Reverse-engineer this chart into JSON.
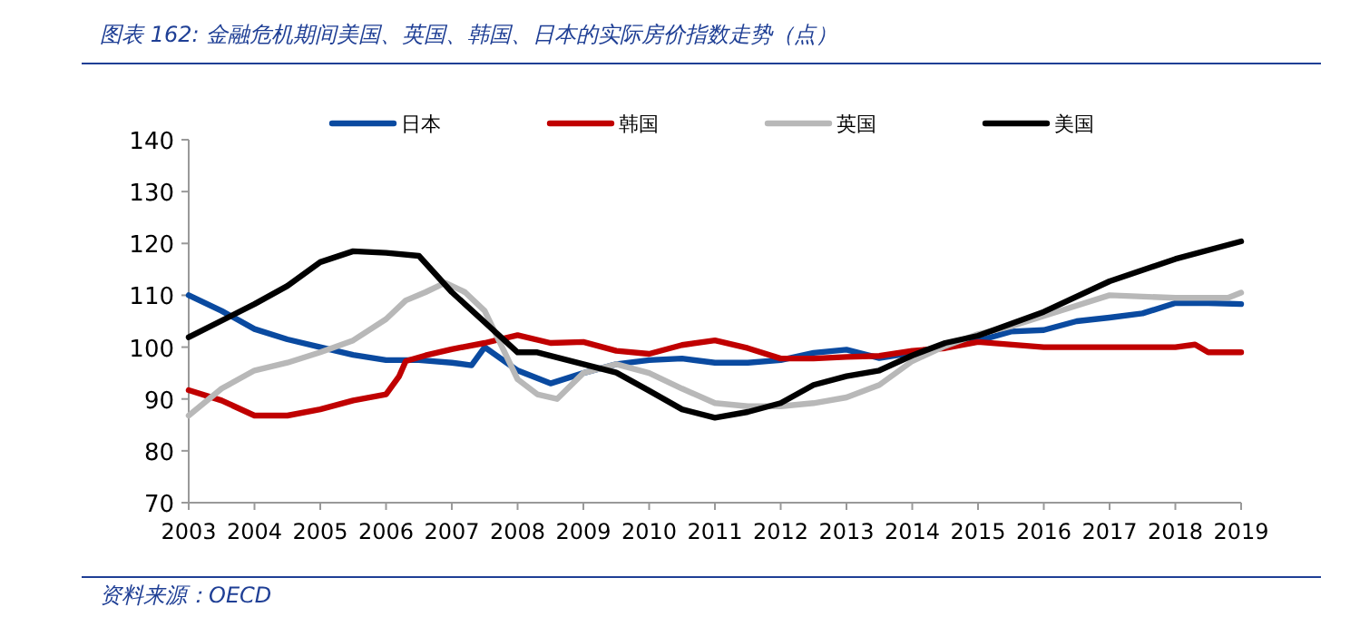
{
  "chart_data": {
    "type": "line",
    "title": "图表 162: 金融危机期间美国、英国、韩国、日本的实际房价指数走势（点）",
    "annotations": [
      "资料来源：OECD"
    ],
    "xlim": [
      2003,
      2019
    ],
    "xticks": [
      2003,
      2004,
      2005,
      2006,
      2007,
      2008,
      2009,
      2010,
      2011,
      2012,
      2013,
      2014,
      2015,
      2016,
      2017,
      2018,
      2019
    ],
    "ylim": [
      70,
      140
    ],
    "yticks": [
      70,
      80,
      90,
      100,
      110,
      120,
      130,
      140
    ],
    "grid": false,
    "legend": "top",
    "marker": "none",
    "line_style": "solid",
    "series": [
      {
        "name": "日本",
        "color": "#0a4aa0",
        "x": [
          2003,
          2003.5,
          2004,
          2004.5,
          2005,
          2005.5,
          2006,
          2006.5,
          2007,
          2007.3,
          2007.5,
          2008,
          2008.5,
          2009,
          2009.5,
          2010,
          2010.5,
          2011,
          2011.5,
          2012,
          2012.5,
          2013,
          2013.5,
          2014,
          2014.5,
          2015,
          2015.5,
          2016,
          2016.5,
          2017,
          2017.5,
          2018,
          2018.5,
          2019
        ],
        "values": [
          110,
          107,
          103.5,
          101.5,
          100,
          98.5,
          97.5,
          97.5,
          97,
          96.5,
          100,
          95.5,
          93,
          95,
          96.7,
          97.5,
          97.8,
          97,
          97,
          97.5,
          98.9,
          99.5,
          97.9,
          98.9,
          100,
          101.2,
          103,
          103.3,
          105,
          105.7,
          106.5,
          108.5,
          108.5,
          108.3
        ]
      },
      {
        "name": "韩国",
        "color": "#c00000",
        "x": [
          2003,
          2003.5,
          2004,
          2004.5,
          2005,
          2005.5,
          2006,
          2006.2,
          2006.3,
          2006.6,
          2007,
          2007.5,
          2008,
          2008.5,
          2009,
          2009.5,
          2010,
          2010.5,
          2011,
          2011.5,
          2012,
          2012.5,
          2013,
          2013.5,
          2014,
          2014.5,
          2015,
          2016,
          2017,
          2018,
          2018.3,
          2018.5,
          2019
        ],
        "values": [
          91.7,
          89.7,
          86.8,
          86.8,
          88,
          89.7,
          90.9,
          94.4,
          97.3,
          98.4,
          99.6,
          100.8,
          102.3,
          100.8,
          101,
          99.3,
          98.7,
          100.4,
          101.3,
          99.8,
          97.8,
          97.8,
          98.1,
          98.3,
          99.3,
          99.8,
          101,
          100,
          100,
          100,
          100.5,
          99,
          99
        ]
      },
      {
        "name": "英国",
        "color": "#b8b8b8",
        "x": [
          2003,
          2003.5,
          2004,
          2004.5,
          2005,
          2005.5,
          2006,
          2006.3,
          2006.6,
          2006.9,
          2007.2,
          2007.5,
          2008,
          2008.3,
          2008.6,
          2009,
          2009.5,
          2010,
          2010.5,
          2011,
          2011.5,
          2012,
          2012.5,
          2013,
          2013.5,
          2014,
          2014.5,
          2015,
          2015.5,
          2016,
          2017,
          2018,
          2018.8,
          2019
        ],
        "values": [
          86.8,
          92,
          95.5,
          97,
          99,
          101.3,
          105.4,
          109,
          110.6,
          112.4,
          110.6,
          107,
          93.8,
          90.9,
          90,
          95,
          96.7,
          95,
          92,
          89.2,
          88.6,
          88.6,
          89.2,
          90.3,
          92.7,
          97.3,
          100.2,
          102.5,
          104,
          106,
          110,
          109.5,
          109.5,
          110.5
        ]
      },
      {
        "name": "美国",
        "color": "#000000",
        "x": [
          2003,
          2004,
          2004.5,
          2005,
          2005.5,
          2006,
          2006.5,
          2007,
          2007.5,
          2008,
          2008.3,
          2009,
          2009.5,
          2010,
          2010.5,
          2011,
          2011.5,
          2012,
          2012.5,
          2013,
          2013.5,
          2014,
          2014.5,
          2015,
          2016,
          2017,
          2018,
          2019
        ],
        "values": [
          101.9,
          108.3,
          111.8,
          116.4,
          118.5,
          118.2,
          117.6,
          110.6,
          104.8,
          99,
          99,
          96.7,
          95.1,
          91.6,
          88,
          86.4,
          87.5,
          89.2,
          92.7,
          94.4,
          95.5,
          98.4,
          100.8,
          102.2,
          106.8,
          112.7,
          117,
          120.4
        ]
      }
    ]
  }
}
